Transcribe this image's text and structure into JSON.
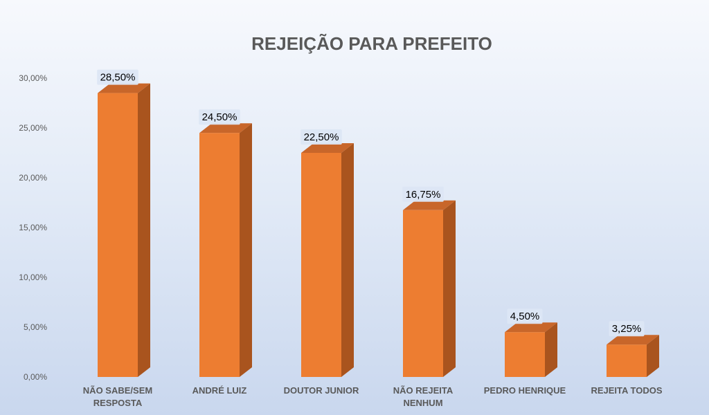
{
  "chart_data": {
    "type": "bar",
    "title": "REJEIÇÃO PARA PREFEITO",
    "categories": [
      [
        "NÃO SABE/SEM",
        "RESPOSTA"
      ],
      [
        "ANDRÉ LUIZ"
      ],
      [
        "DOUTOR JUNIOR"
      ],
      [
        "NÃO REJEITA",
        "NENHUM"
      ],
      [
        "PEDRO HENRIQUE"
      ],
      [
        "REJEITA TODOS"
      ]
    ],
    "values": [
      28.5,
      24.5,
      22.5,
      16.75,
      4.5,
      3.25
    ],
    "data_labels": [
      "28,50%",
      "24,50%",
      "22,50%",
      "16,75%",
      "4,50%",
      "3,25%"
    ],
    "y_ticks": [
      0,
      5,
      10,
      15,
      20,
      25,
      30
    ],
    "y_tick_labels": [
      "0,00%",
      "5,00%",
      "10,00%",
      "15,00%",
      "20,00%",
      "25,00%",
      "30,00%"
    ],
    "ylim": [
      0,
      30
    ],
    "xlabel": "",
    "ylabel": "",
    "grid": false,
    "legend": "none",
    "bar_color": "#ED7D31",
    "bar_side_color": "#A9541E",
    "bar_top_color": "#C8662A",
    "label_box_color": "#DCE6F4"
  }
}
